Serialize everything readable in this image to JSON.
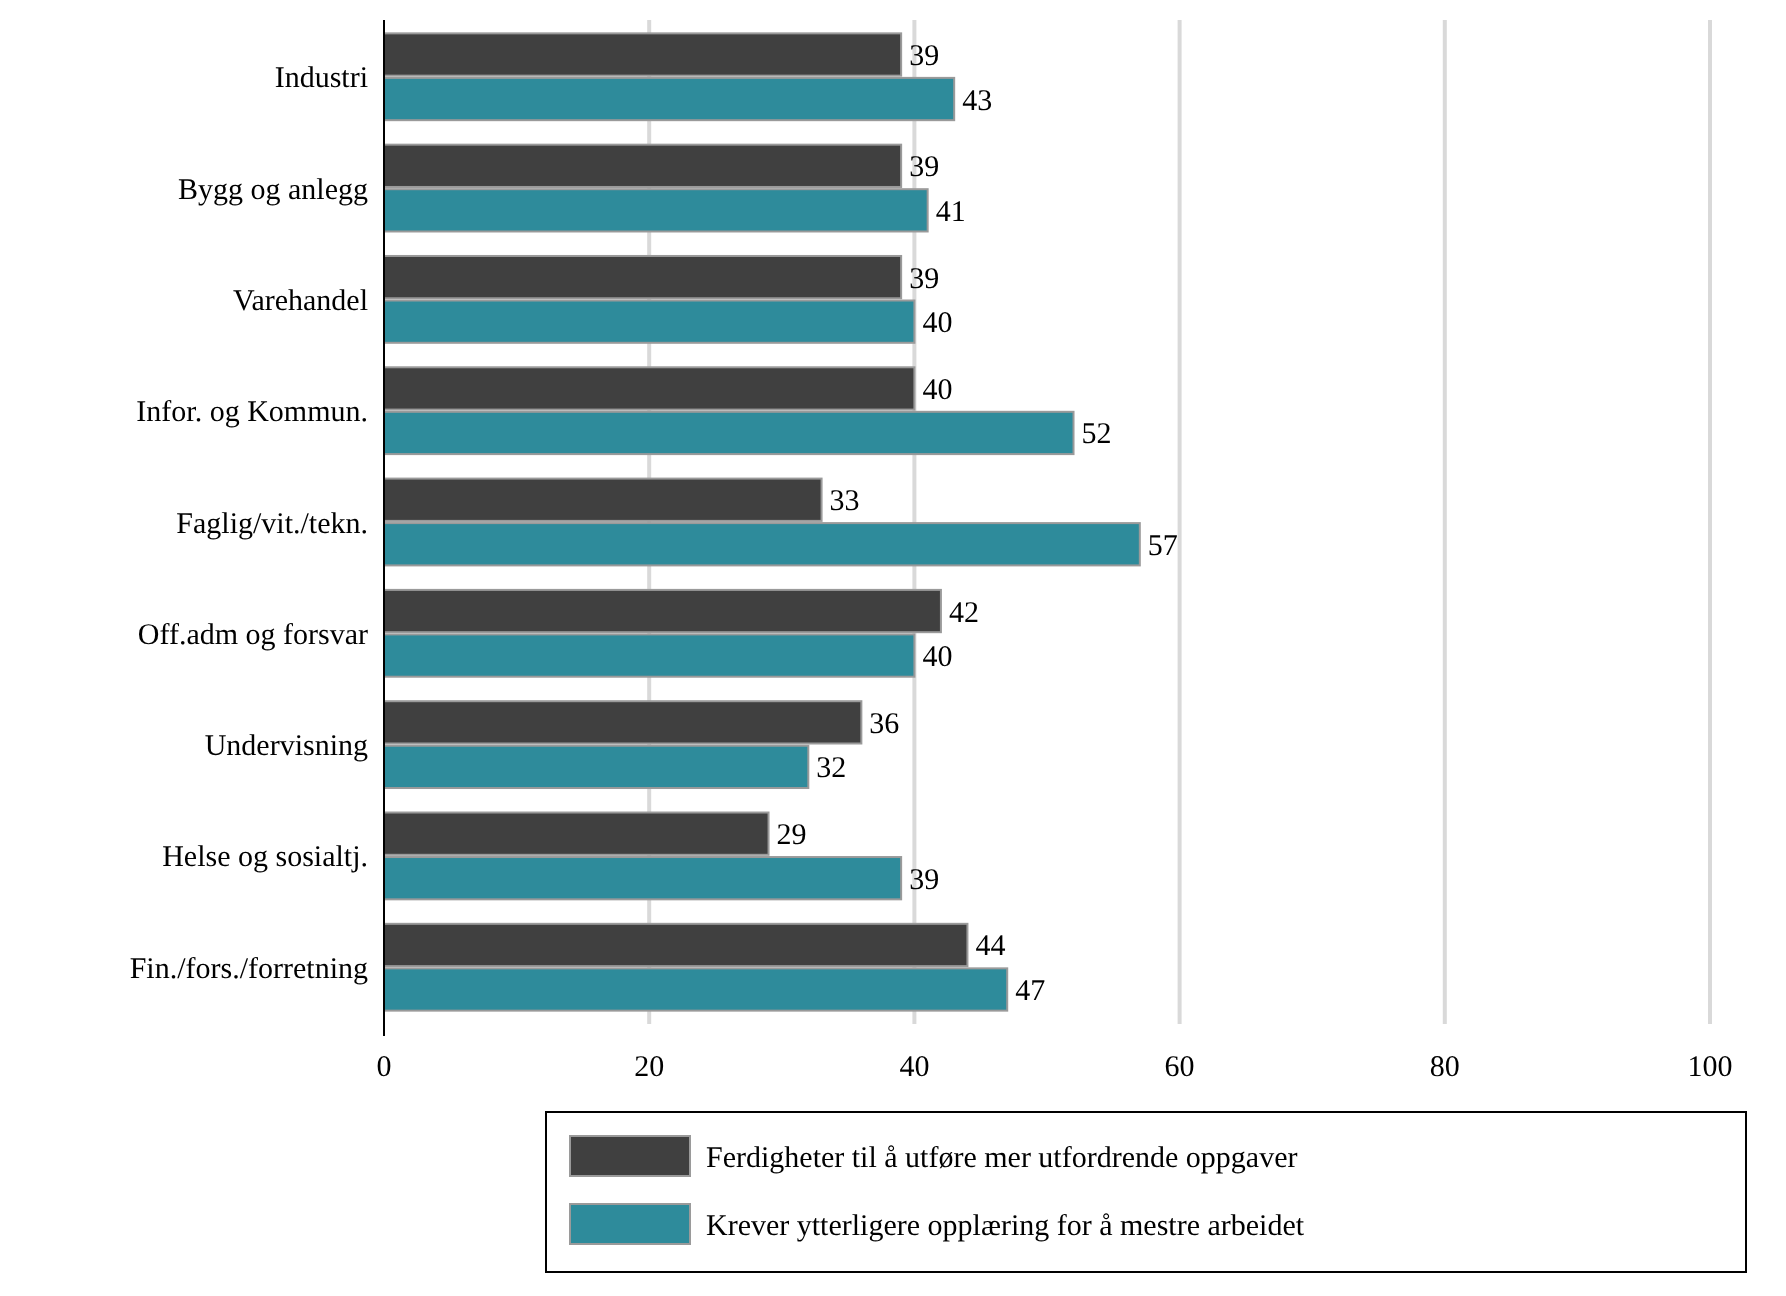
{
  "chart_data": {
    "type": "bar",
    "orientation": "horizontal",
    "categories": [
      "Industri",
      "Bygg og anlegg",
      "Varehandel",
      "Infor. og Kommun.",
      "Faglig/vit./tekn.",
      "Off.adm og forsvar",
      "Undervisning",
      "Helse og sosialtj.",
      "Fin./fors./forretning"
    ],
    "series": [
      {
        "name": "Ferdigheter til å utføre mer utfordrende oppgaver",
        "color": "#404040",
        "values": [
          39,
          39,
          39,
          40,
          33,
          42,
          36,
          29,
          44
        ]
      },
      {
        "name": "Krever ytterligere opplæring for å mestre arbeidet",
        "color": "#2e8b9b",
        "values": [
          43,
          41,
          40,
          52,
          57,
          40,
          32,
          39,
          47
        ]
      }
    ],
    "xlim": [
      0,
      100
    ],
    "xticks": [
      0,
      20,
      40,
      60,
      80,
      100
    ],
    "grid": "x",
    "data_labels": true,
    "legend": "bottom"
  }
}
